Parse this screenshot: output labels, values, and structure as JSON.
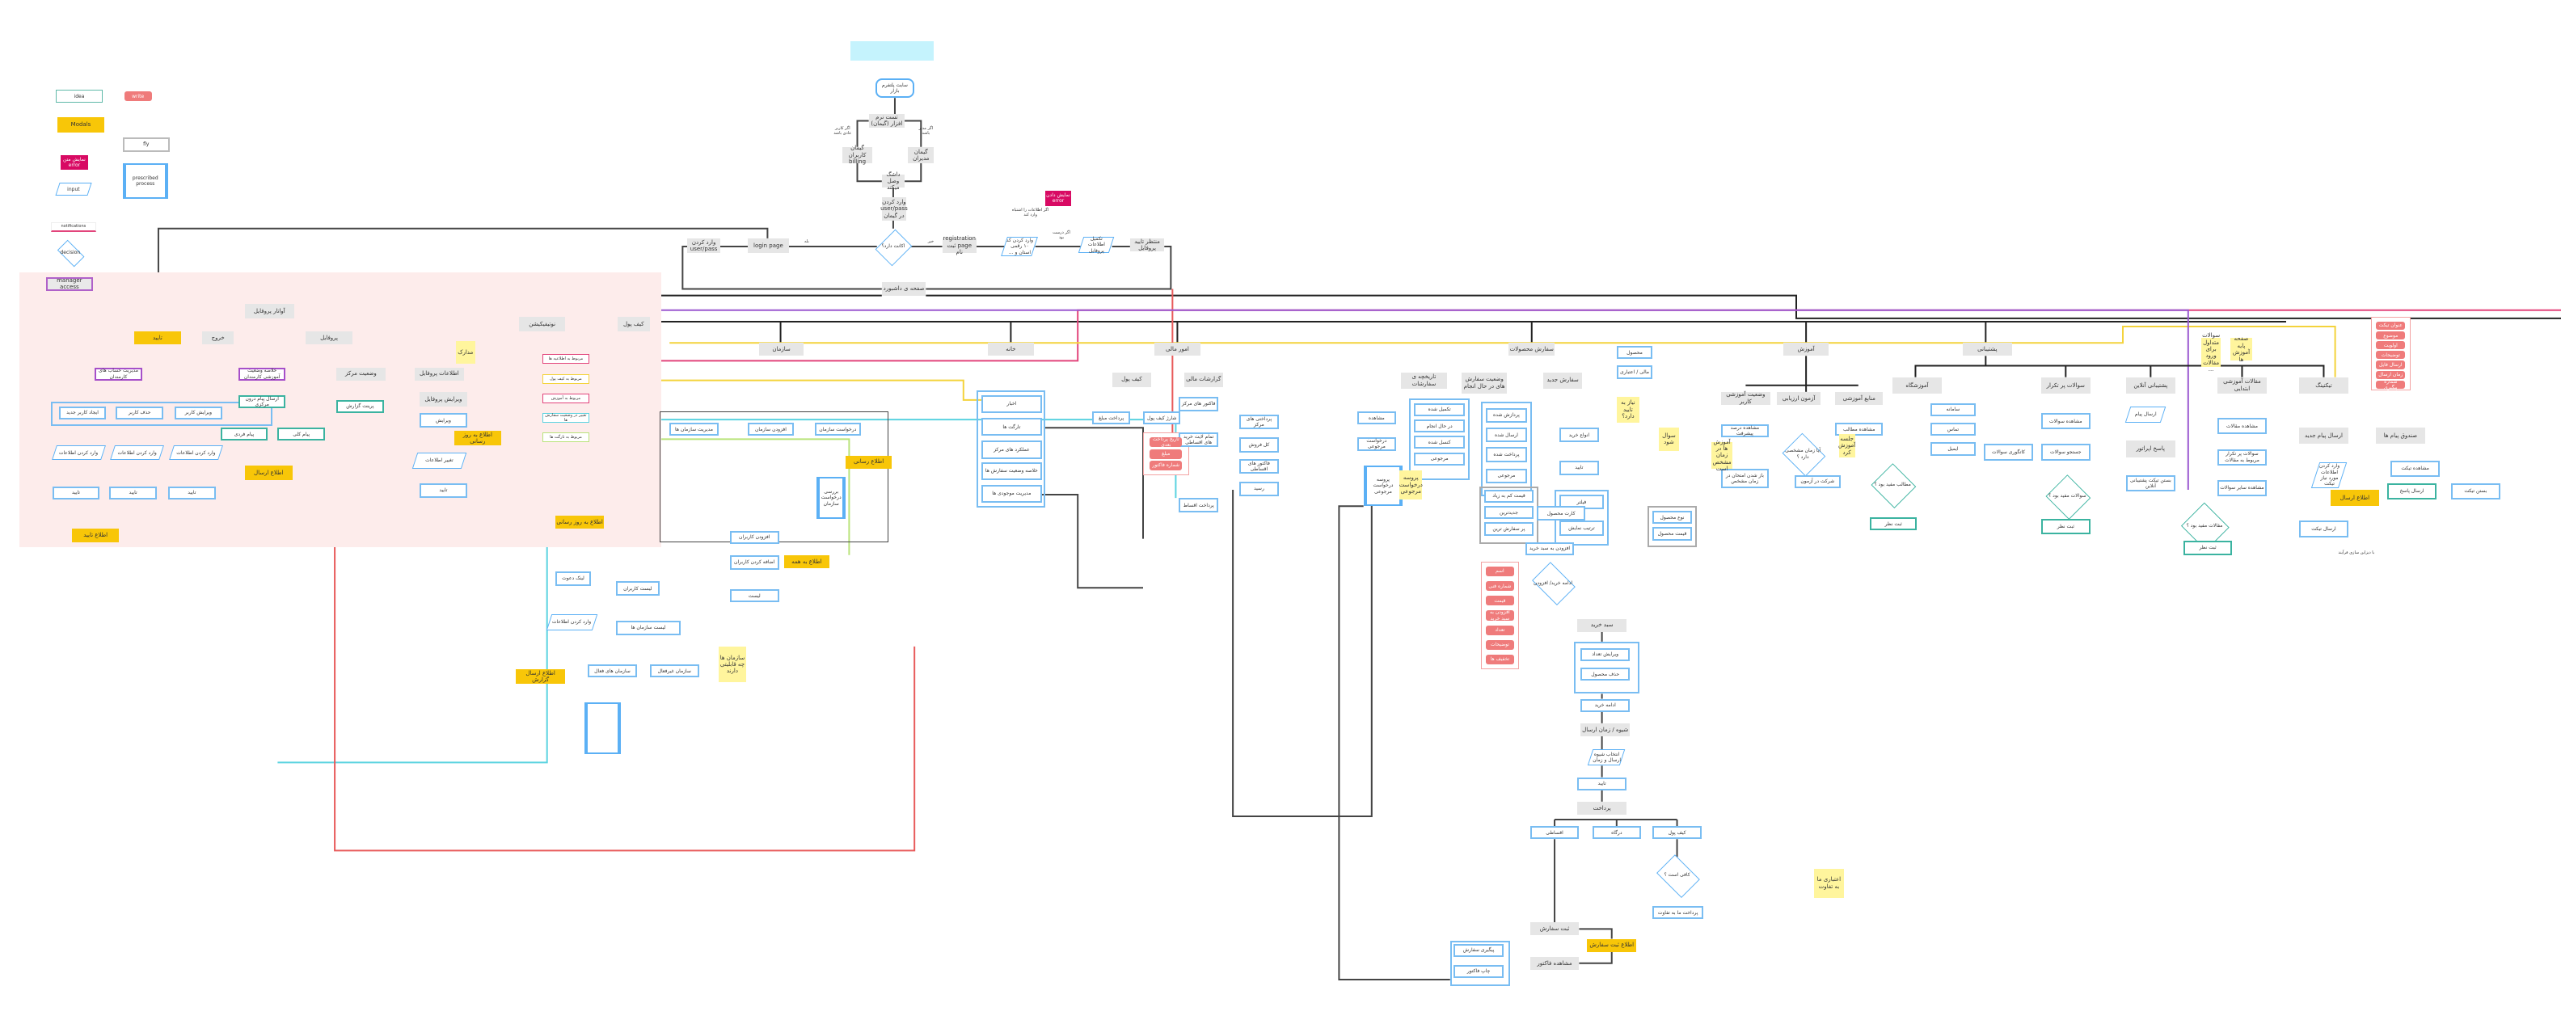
{
  "title": "پلتفرم شبکه فروش و خدمات",
  "legend": {
    "idea": "idea",
    "write": "write",
    "modals": "Modals",
    "fly": "fly",
    "error": "نمایش متن error",
    "prescribed": "prescribed process",
    "input": "input",
    "notifications": "notifications",
    "decision": "decision",
    "manager_access": "manager access"
  },
  "colors": {
    "modal": "#f8c608",
    "process": "#79bdf2",
    "gray_node": "#e6e6e6",
    "error": "#d80a63",
    "sticky": "#fff59d",
    "manager_area": "#fdeceb"
  },
  "nodes": {
    "start": "سایت پلتفرم بازار",
    "test": "تست نرم افزار (گیمان)",
    "billing": "گیمان کاربران billing",
    "mgrs": "گیمان مدیران",
    "connect": "داشگ وصل میکند",
    "userpass": "وارد کردن user/pass در گیمان",
    "dec1": "اکانت دارد؟",
    "lbl_user": "اگر کاربر عادی باشد",
    "lbl_mgr": "اگر مدیر باشد",
    "lbl_yes": "بله",
    "lbl_no": "خیر",
    "login": "login page",
    "enterup": "وارد کردن user/pass",
    "reg": "registration page ثبت نام",
    "mobile": "وارد کردن کد ۱۰ رقمی استان و ...",
    "errbox": "نمایش دادن error",
    "err_lbl": "اگر اطلاعات را اشتباه وارد کند",
    "ok_lbl": "اگر درست بود",
    "confinfo": "تکمیل اطلاعات پروفایل",
    "waitprof": "منتظر تایید پروفایل",
    "dash": "صفحه ی داشبورد",
    "avatar": "آواتار پروفایل",
    "exit": "خروج",
    "profile": "پروفایل",
    "confirm1": "تایید",
    "accounts": "مدیریت حساب های کارمندان",
    "summary": "خلاصه وضعیت آموزشی کارمندان",
    "center": "وضعیت مرکز",
    "profinfo": "اطلاعات پروفایل",
    "newuser": "ایجاد کاربر جدید",
    "deluser": "حذف کاربر",
    "edituser": "ویرایش کاربر",
    "inp": "وارد کردن اطلاعات",
    "confirm": "تایید",
    "notifconf": "اطلاع تایید",
    "sendcentral": "ارسال پیام درون مرکزی",
    "priv": "پیام فردی",
    "general": "پیام کلی",
    "notifsend": "اطلاع ارسال",
    "report": "پرینت گزارش",
    "madarek": "مدارک",
    "editprof": "ویرایش پروفایل",
    "edit": "ویرایش",
    "notifupdate": "اطلاع به روز رسانی",
    "changeinfo": "تغییر اطلاعات",
    "notifications": "نوتیفیکیشن",
    "wallet": "کیف پول",
    "n1": "مربوط به اطلاعیه ها",
    "n2": "مربوط به کیف پول",
    "n3": "مربوط به آموزش",
    "n4": "تغییر در وضعیت سفارش ها",
    "n5": "مربوط به تارگت ها",
    "org": "سازمان",
    "org1": "مدیریت سازمان ها",
    "org2": "افزودن سازمان",
    "org3": "درخواست سازمان",
    "org_modal": "اطلاع رسانی",
    "org_add": "افزودن کاربران",
    "org_modal2": "اطلاع به همه",
    "org_c1": "اضافه کردن کاربران",
    "org_c2": "لیست",
    "org_l1": "لیست کاربران",
    "org_l2": "لیست سازمان ها",
    "org_s": "لینک دعوت",
    "org_in": "وارد کردن اطلاعات",
    "org_b1": "سازمان های فعال",
    "org_b2": "سازمان غیرفعال",
    "org_notif": "اطلاع به روز رسانی",
    "org_proc": "بررسی درخواست سازمان",
    "org_sticky": "سازمان ها چه قابلیتی دارند",
    "org_modal3": "اطلاع ارسال گزارش",
    "home": "خانه",
    "h1": "اخبار",
    "h2": "تارگت ها",
    "h3": "عملکرد های مرکز",
    "h4": "خلاصه وضعیت سفارش ها",
    "h5": "مدیریت موجودی ها",
    "finance": "امور مالی",
    "wallet2": "کیف پول",
    "finreport": "گزارشات مالی",
    "pay": "پرداخت مبلغ",
    "charge": "شارژ کیف پول",
    "centerinv": "فاکتور های مرکز",
    "installment": "تمام لایت خرید های اقساطی",
    "pays": "پرداختی های مرکز",
    "total": "کل فروش",
    "instinv": "فاکتور های اقساطی",
    "receipt": "رسید",
    "installpay": "پرداخت اقساط",
    "r1": "تاریخ پرداخت بعدی",
    "r2": "مبلغ",
    "r3": "شماره فاکتور",
    "orders": "سفارش محصولات",
    "history": "تاریخچه ی سفارشات",
    "current": "وضعیت سفارش های در حال انجام",
    "neworder": "سفارش جدید",
    "o_view": "مشاهده",
    "o_ret": "درخواست مرجوعی",
    "o_proc": "پروسه درخواست مرجوعی",
    "o_sticky": "پروسه درخواست مرجوعی",
    "s1": "تکمیل شده",
    "s2": "در حال انجام",
    "s3": "کنسل شده",
    "s4": "مرجوعی",
    "c1": "پردازش شده",
    "c2": "ارسال شده",
    "c3": "پرداخت شده",
    "c4": "مرجوعی",
    "product": "محصول",
    "product2": "مالی / اعتباری",
    "need_confirm": "نیاز به تایید دارد؟",
    "types": "انواع خرید",
    "confirm_o": "تایید",
    "filter": "فیلتر",
    "sort": "ترتیب نمایش",
    "sort1": "قیمت کم به زیاد",
    "sort2": "جدیدترین",
    "sort3": "پر سفارش ترین",
    "pt1": "نوع محصول",
    "pt2": "قیمت محصول",
    "card": "کارت محصول",
    "addcart": "افزودن به سبد خرید",
    "dec_cart": "ادامه خرید/ افزودن",
    "basket": "سبد خرید",
    "editqty": "ویرایش تعداد",
    "delprod": "حذف محصول",
    "cont": "ادامه خرید",
    "ship": "شیوه / زمان ارسال",
    "ship_in": "انتخاب شیوه ارسال و زمان",
    "confirm_s": "تایید",
    "payment": "پرداخت",
    "pm1": "اقساطی",
    "pm2": "درگاه",
    "pm3": "کیف پول",
    "dec_enough": "کافی است ؟",
    "diff": "پرداخت ما به تفاوت",
    "submit": "ثبت سفارش",
    "notif_submit": "اطلاع ثبت سفارش",
    "invoice": "مشاهده فاکتور",
    "track": "پیگیری سفارش",
    "printinv": "چاپ فاکتور",
    "sticky_diff": "اعتباری ما به تفاوت",
    "sticky_q": "سوال شود",
    "prod_red1": "اسم",
    "prod_red2": "شماره فنی",
    "prod_red3": "قیمت",
    "prod_red4": "افزودن به سبد خرید",
    "prod_red5": "تعداد",
    "prod_red6": "توضیحات",
    "prod_red7": "تخفیف ها",
    "education": "آموزش",
    "e_status": "وضعیت آموزشی کاربر",
    "e_exam": "آزمون ارزیابی",
    "e_res": "منابع آموزشی",
    "e_progress": "مشاهده درصد پیشرفت",
    "e_view": "مشاهده مطالب",
    "e_dec": "آیا زمان مشخصی دارد ؟",
    "e_open": "باز شدن امتحان در زمان مشخص",
    "e_take": "شرکت در آزمون",
    "e_dec2": "مطالب مفید بود ؟",
    "e_rate": "ثبت نظر",
    "e_st1": "آموزش ها در زمان مشخص است",
    "e_st2": "جلسه آموزش کرد",
    "support": "پشتیبانی",
    "s_tour": "آموزشگاه",
    "s_t1": "سامانه",
    "s_t2": "تماس",
    "s_t3": "ایمیل",
    "faq": "سوالات پر تکرار",
    "faq_view": "مشاهده سوالات",
    "faq_search": "جستجو سوالات",
    "faq_cat": "کاتگوری سوالات",
    "faq_dec": "سوالات مفید بود ؟",
    "faq_rate": "ثبت نظر",
    "online": "پشتیبانی آنلاین",
    "on_send": "ارسال پیام",
    "on_reply": "پاسخ اپراتور",
    "on_close": "بستن تیکت پشتیبانی آنلاین",
    "articles": "مقالات آموزشی ابتدایی",
    "ar_view": "مشاهده مقالات",
    "ar_faq": "سوالات پر تکرار مربوط به مقالات",
    "ar_more": "مشاهده سایر سوالات",
    "ar_dec": "مقالات مفید بود ؟",
    "ar_rate": "ثبت نظر",
    "ticket": "تیکتینگ",
    "t_new": "ارسال پیام جدید",
    "t_box": "صندوق پیام ها",
    "t_in": "وارد کردن اطلاعات مورد نیاز تیکت",
    "t_send": "ارسال تیکت",
    "t_notif": "اطلاع ارسال",
    "t_view": "مشاهده تیکت",
    "t_reply": "ارسال پاسخ",
    "t_close": "بستن تیکت",
    "t_note": "با دیزاین سازی فرآیند",
    "sp_st1": "سوالات متداول برای ورود مقالات ...",
    "sp_st2": "صفحه پایه آموزش ها",
    "tr1": "عنوان تیکت",
    "tr2": "موضوع",
    "tr3": "اولویت",
    "tr4": "توضیحات",
    "tr5": "ارسال فایل",
    "tr6": "زمان ارسال",
    "tr7": "شماره پیگیری",
    "ans_sticky": "اعتباری ما به تفاوت"
  }
}
